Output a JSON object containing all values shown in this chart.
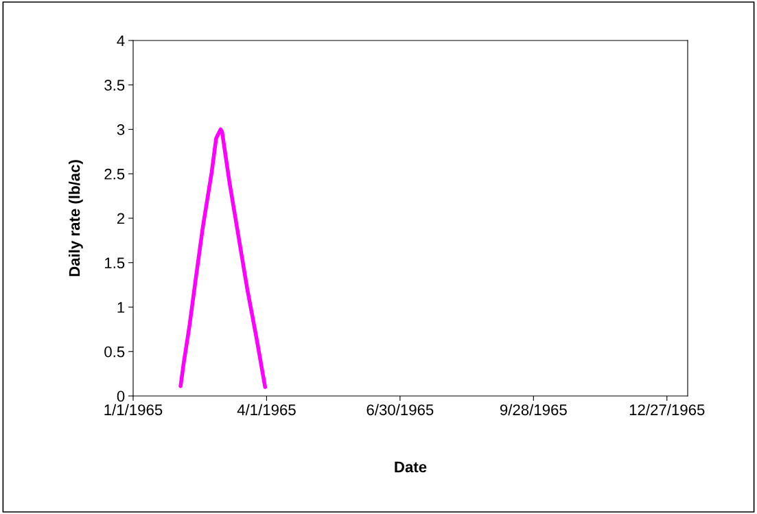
{
  "chart_data": {
    "type": "line",
    "xlabel": "Date",
    "ylabel": "Daily rate (lb/ac)",
    "x": [
      "1965-02-02",
      "1965-02-04",
      "1965-02-08",
      "1965-02-12",
      "1965-02-17",
      "1965-02-23",
      "1965-02-26",
      "1965-03-01",
      "1965-03-02",
      "1965-03-07",
      "1965-03-13",
      "1965-03-19",
      "1965-03-25",
      "1965-03-31"
    ],
    "series": [
      {
        "color": "#ff00ff",
        "values": [
          0.11,
          0.36,
          0.79,
          1.29,
          1.9,
          2.52,
          2.9,
          3.0,
          2.97,
          2.4,
          1.8,
          1.2,
          0.67,
          0.1
        ]
      }
    ],
    "xlim": [
      "1965-01-01",
      "1966-01-10"
    ],
    "xticks": [
      {
        "value": "1965-01-01",
        "label": "1/1/1965"
      },
      {
        "value": "1965-04-01",
        "label": "4/1/1965"
      },
      {
        "value": "1965-06-30",
        "label": "6/30/1965"
      },
      {
        "value": "1965-09-28",
        "label": "9/28/1965"
      },
      {
        "value": "1965-12-27",
        "label": "12/27/1965"
      }
    ],
    "ylim": [
      0,
      4
    ],
    "yticks": [
      0,
      0.5,
      1,
      1.5,
      2,
      2.5,
      3,
      3.5,
      4
    ],
    "grid": false,
    "legend": false,
    "marker": "none",
    "line_style": "solid"
  }
}
